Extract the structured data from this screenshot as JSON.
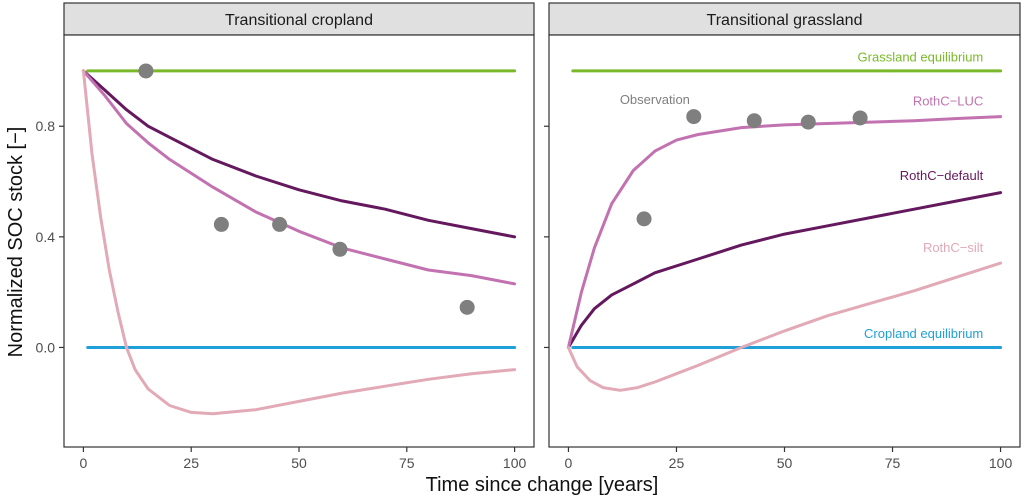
{
  "colors": {
    "grassland_equilibrium": "#7ab929",
    "cropland_equilibrium": "#20a0d8",
    "rothc_luc": "#c272b0",
    "rothc_default": "#64195e",
    "rothc_silt": "#e2a9b6",
    "observation": "#7f7f7f",
    "strip_fill": "#e0e0e0",
    "panel_border": "#333333",
    "axis_text": "#4d4d4d"
  },
  "chart_data": [
    {
      "type": "line",
      "title": "Transitional cropland",
      "xlabel": "Time since change [years]",
      "ylabel": "Normalized SOC stock [−]",
      "xlim": [
        -4.5,
        104.5
      ],
      "ylim": [
        -0.36,
        1.13
      ],
      "x_ticks": [
        0,
        25,
        50,
        75,
        100
      ],
      "x_tick_labels": [
        "0",
        "25",
        "50",
        "75",
        "100"
      ],
      "y_ticks": [
        0.0,
        0.4,
        0.8
      ],
      "y_tick_labels": [
        "0.0",
        "0.4",
        "0.8"
      ],
      "grid": false,
      "series": [
        {
          "key": "grassland_equilibrium",
          "color_key": "grassland_equilibrium",
          "x": [
            1,
            100
          ],
          "y": [
            1.0,
            1.0
          ]
        },
        {
          "key": "cropland_equilibrium",
          "color_key": "cropland_equilibrium",
          "x": [
            1,
            100
          ],
          "y": [
            0.0,
            0.0
          ]
        },
        {
          "key": "rothc_default",
          "color_key": "rothc_default",
          "x": [
            0,
            5,
            10,
            15,
            20,
            30,
            40,
            50,
            60,
            70,
            80,
            90,
            100
          ],
          "y": [
            1.0,
            0.93,
            0.86,
            0.8,
            0.76,
            0.68,
            0.62,
            0.57,
            0.53,
            0.5,
            0.46,
            0.43,
            0.4
          ]
        },
        {
          "key": "rothc_luc",
          "color_key": "rothc_luc",
          "x": [
            0,
            5,
            10,
            15,
            20,
            30,
            40,
            50,
            60,
            70,
            80,
            90,
            100
          ],
          "y": [
            1.0,
            0.91,
            0.81,
            0.74,
            0.68,
            0.58,
            0.49,
            0.42,
            0.36,
            0.32,
            0.28,
            0.26,
            0.23
          ]
        },
        {
          "key": "rothc_silt",
          "color_key": "rothc_silt",
          "x": [
            0,
            2,
            4,
            6,
            8,
            10,
            12,
            15,
            20,
            25,
            30,
            40,
            50,
            60,
            70,
            80,
            90,
            100
          ],
          "y": [
            1.0,
            0.7,
            0.47,
            0.28,
            0.13,
            0.0,
            -0.08,
            -0.15,
            -0.21,
            -0.235,
            -0.24,
            -0.225,
            -0.195,
            -0.165,
            -0.14,
            -0.115,
            -0.095,
            -0.08
          ]
        }
      ],
      "observations": {
        "x": [
          14.5,
          32,
          45.5,
          59.5,
          89
        ],
        "y": [
          1.0,
          0.445,
          0.445,
          0.355,
          0.145
        ]
      },
      "labels": []
    },
    {
      "type": "line",
      "title": "Transitional grassland",
      "xlabel": "Time since change [years]",
      "ylabel": "",
      "xlim": [
        -4.5,
        104.5
      ],
      "ylim": [
        -0.36,
        1.13
      ],
      "x_ticks": [
        0,
        25,
        50,
        75,
        100
      ],
      "x_tick_labels": [
        "0",
        "25",
        "50",
        "75",
        "100"
      ],
      "y_ticks": [
        0.0,
        0.4,
        0.8
      ],
      "y_tick_labels": [],
      "grid": false,
      "series": [
        {
          "key": "grassland_equilibrium",
          "color_key": "grassland_equilibrium",
          "x": [
            1,
            100
          ],
          "y": [
            1.0,
            1.0
          ]
        },
        {
          "key": "cropland_equilibrium",
          "color_key": "cropland_equilibrium",
          "x": [
            1,
            100
          ],
          "y": [
            0.0,
            0.0
          ]
        },
        {
          "key": "rothc_default",
          "color_key": "rothc_default",
          "x": [
            0,
            3,
            6,
            10,
            15,
            20,
            30,
            40,
            50,
            60,
            70,
            80,
            90,
            100
          ],
          "y": [
            0.0,
            0.08,
            0.14,
            0.19,
            0.23,
            0.27,
            0.32,
            0.37,
            0.41,
            0.44,
            0.47,
            0.5,
            0.53,
            0.56
          ]
        },
        {
          "key": "rothc_luc",
          "color_key": "rothc_luc",
          "x": [
            0,
            3,
            6,
            10,
            15,
            20,
            25,
            30,
            40,
            50,
            60,
            70,
            80,
            90,
            100
          ],
          "y": [
            0.0,
            0.2,
            0.36,
            0.52,
            0.64,
            0.71,
            0.75,
            0.77,
            0.795,
            0.805,
            0.81,
            0.815,
            0.82,
            0.828,
            0.835
          ]
        },
        {
          "key": "rothc_silt",
          "color_key": "rothc_silt",
          "x": [
            0,
            2,
            5,
            8,
            12,
            16,
            20,
            25,
            30,
            40,
            50,
            60,
            70,
            80,
            90,
            100
          ],
          "y": [
            0.0,
            -0.07,
            -0.12,
            -0.145,
            -0.155,
            -0.145,
            -0.125,
            -0.095,
            -0.065,
            0.0,
            0.06,
            0.115,
            0.16,
            0.205,
            0.255,
            0.305
          ]
        }
      ],
      "observations": {
        "x": [
          17.5,
          29,
          43,
          55.5,
          67.5
        ],
        "y": [
          0.465,
          0.835,
          0.82,
          0.815,
          0.83
        ]
      },
      "labels": [
        {
          "text": "Grassland equilibrium",
          "x": 96,
          "y": 1.035,
          "color_key": "grassland_equilibrium",
          "anchor": "end"
        },
        {
          "text": "Observation",
          "x": 20,
          "y": 0.88,
          "color_key": "observation",
          "anchor": "middle"
        },
        {
          "text": "RothC−LUC",
          "x": 96,
          "y": 0.875,
          "color_key": "rothc_luc",
          "anchor": "end"
        },
        {
          "text": "RothC−default",
          "x": 96,
          "y": 0.605,
          "color_key": "rothc_default",
          "anchor": "end"
        },
        {
          "text": "RothC−silt",
          "x": 96,
          "y": 0.345,
          "color_key": "rothc_silt",
          "anchor": "end"
        },
        {
          "text": "Cropland equilibrium",
          "x": 96,
          "y": 0.035,
          "color_key": "cropland_equilibrium",
          "anchor": "end"
        }
      ]
    }
  ]
}
